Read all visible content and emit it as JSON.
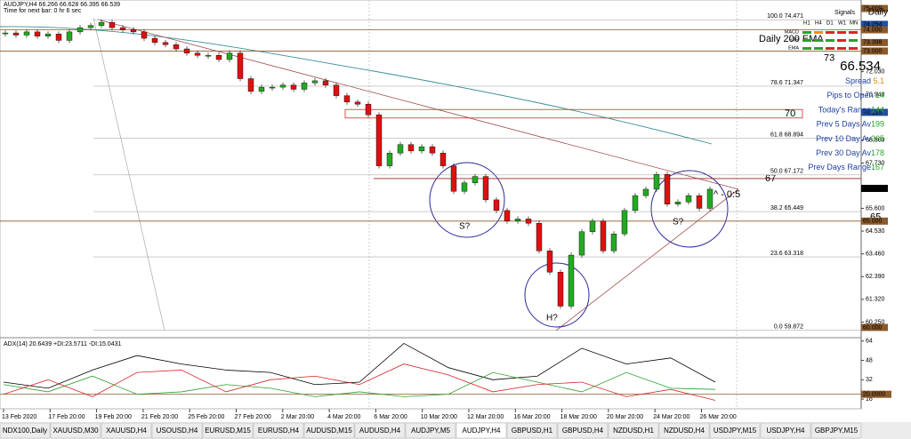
{
  "header": {
    "symbol_line": "AUDJPY,H4 66.266 66.628 66.395 66.539",
    "timer": "Time for next bar: 0 hr 6 sec"
  },
  "chart_data": {
    "type": "candlestick",
    "values": [
      73.85,
      73.75,
      73.9,
      73.7,
      73.8,
      73.5,
      73.9,
      74.1,
      74.2,
      74.35,
      74.1,
      74.0,
      73.9,
      73.6,
      73.4,
      73.3,
      73.1,
      72.9,
      72.8,
      72.8,
      72.6,
      72.9,
      71.7,
      71.1,
      71.3,
      71.3,
      71.4,
      71.2,
      71.5,
      71.6,
      71.4,
      70.9,
      70.6,
      70.5,
      70.0,
      67.6,
      68.2,
      68.6,
      68.3,
      68.5,
      68.2,
      67.6,
      66.4,
      66.8,
      67.1,
      66.0,
      65.5,
      65.0,
      65.1,
      64.9,
      63.6,
      62.6,
      61.0,
      63.4,
      64.5,
      65.0,
      63.6,
      64.4,
      65.5,
      66.2,
      66.5,
      67.2,
      65.8,
      65.9,
      66.2,
      65.6,
      66.5
    ],
    "up_color": "#22aa22",
    "down_color": "#dd1111",
    "ylim": [
      59.6,
      75.4
    ],
    "yticks": [
      {
        "value": 72.03,
        "label": "72.030"
      },
      {
        "value": 70.94,
        "label": "70.940"
      },
      {
        "value": 68.8,
        "label": "68.800"
      },
      {
        "value": 67.73,
        "label": "67.730"
      },
      {
        "value": 65.6,
        "label": "65.600"
      },
      {
        "value": 64.53,
        "label": "64.530"
      },
      {
        "value": 63.46,
        "label": "63.460"
      },
      {
        "value": 62.39,
        "label": "62.390"
      },
      {
        "value": 61.32,
        "label": "61.320"
      },
      {
        "value": 60.25,
        "label": "60.250"
      }
    ],
    "price_markers": [
      {
        "value": 75,
        "label": "75.000"
      },
      {
        "value": 74.254,
        "label": "74.254"
      },
      {
        "value": 74,
        "label": "74.000"
      },
      {
        "value": 73.398,
        "label": "73.398"
      },
      {
        "value": 73,
        "label": "73.000"
      },
      {
        "value": 70.116,
        "label": "70.116"
      },
      {
        "value": 66.539,
        "label": "66.539"
      },
      {
        "value": 65,
        "label": "65.000"
      },
      {
        "value": 60,
        "label": "60.000"
      }
    ],
    "fib": [
      {
        "value": 74.471,
        "label": "100.0  74.471"
      },
      {
        "value": 71.347,
        "label": "78.6  71.347"
      },
      {
        "value": 68.894,
        "label": "61.8  68.894"
      },
      {
        "value": 67.172,
        "label": "50.0  67.172"
      },
      {
        "value": 65.449,
        "label": "38.2  65.449"
      },
      {
        "value": 63.318,
        "label": "23.6  63.318"
      },
      {
        "value": 59.872,
        "label": "0.0  59.872"
      }
    ],
    "levels": [
      {
        "value": 67,
        "label": "67"
      },
      {
        "value": 65,
        "label": "65"
      }
    ],
    "zone": {
      "label": "70",
      "range": [
        70.25,
        69.85
      ]
    },
    "ema_zone": {
      "label": "Daily 200 EMA",
      "range": [
        74,
        73
      ],
      "note": "73"
    },
    "annotations": [
      "^ - 0:5",
      "S?",
      "S?",
      "H?"
    ],
    "x_labels": [
      "13 Feb 2020",
      "17 Feb 20:00",
      "19 Feb 20:00",
      "21 Feb 20:00",
      "25 Feb 20:00",
      "27 Feb 20:00",
      "2 Mar 20:00",
      "4 Mar 20:00",
      "6 Mar 20:00",
      "10 Mar 20:00",
      "12 Mar 20:00",
      "16 Mar 20:00",
      "18 Mar 20:00",
      "20 Mar 20:00",
      "24 Mar 20:00",
      "26 Mar 20:00"
    ],
    "adx": {
      "title": "ADX(14) 20.6439 +DI:23.5711 -DI:15.0431",
      "ylim": [
        8,
        66
      ],
      "yticks": [
        64,
        48,
        32,
        16
      ],
      "marker": {
        "value": 20,
        "label": "20.0000"
      },
      "series": [
        {
          "color": "#000000",
          "values": [
            30,
            25,
            40,
            52,
            45,
            40,
            38,
            28,
            30,
            62,
            42,
            32,
            35,
            58,
            45,
            50,
            30
          ]
        },
        {
          "color": "#2ca02c",
          "values": [
            28,
            22,
            35,
            20,
            22,
            28,
            25,
            18,
            22,
            18,
            20,
            38,
            30,
            22,
            38,
            25,
            24
          ]
        },
        {
          "color": "#d62728",
          "values": [
            20,
            32,
            18,
            38,
            40,
            22,
            32,
            35,
            28,
            45,
            36,
            22,
            28,
            30,
            18,
            24,
            15
          ]
        }
      ]
    }
  },
  "panel": {
    "daily": "Daily",
    "signals": "Signals",
    "timeframes": [
      "H1",
      "H4",
      "D1",
      "W1",
      "MN"
    ],
    "rows": [
      {
        "label": "MACD",
        "colors": [
          "#2ca02c",
          "#ff8c00",
          "#d62728",
          "#d62728",
          "#d62728"
        ]
      },
      {
        "label": "STR",
        "colors": [
          "#2ca02c",
          "#2ca02c",
          "#2ca02c",
          "#d62728",
          "#2ca02c"
        ]
      },
      {
        "label": "EMA",
        "colors": [
          "#2ca02c",
          "#2ca02c",
          "#d62728",
          "#d62728",
          "#d62728"
        ]
      }
    ],
    "price": "66.534",
    "stats": [
      {
        "label": "Spread ",
        "value": 5.1
      },
      {
        "label": "Pips to Open ",
        "value": 14
      },
      {
        "label": "Today's Range",
        "value": 144
      },
      {
        "label": "Prev 5 Days Av",
        "value": 199
      },
      {
        "label": "Prev 10 Day Av",
        "value": 265
      },
      {
        "label": "Prev 30 Day Av",
        "value": 178
      },
      {
        "label": "Prev Days Range",
        "value": 167
      }
    ]
  },
  "tabs": [
    "NDX100,Daily",
    "XAUUSD,M30",
    "XAUUSD,H4",
    "USOUSD,H4",
    "EURUSD,M15",
    "EURUSD,H4",
    "AUDUSD,M15",
    "AUDUSD,H4",
    "AUDJPY,M5",
    "AUDJPY,H4",
    "GBPUSD,H1",
    "GBPUSD,H4",
    "NZDUSD,H1",
    "NZDUSD,H4",
    "USDJPY,M15",
    "USDJPY,H4",
    "GBPJPY,M15"
  ],
  "active_tab": 9
}
